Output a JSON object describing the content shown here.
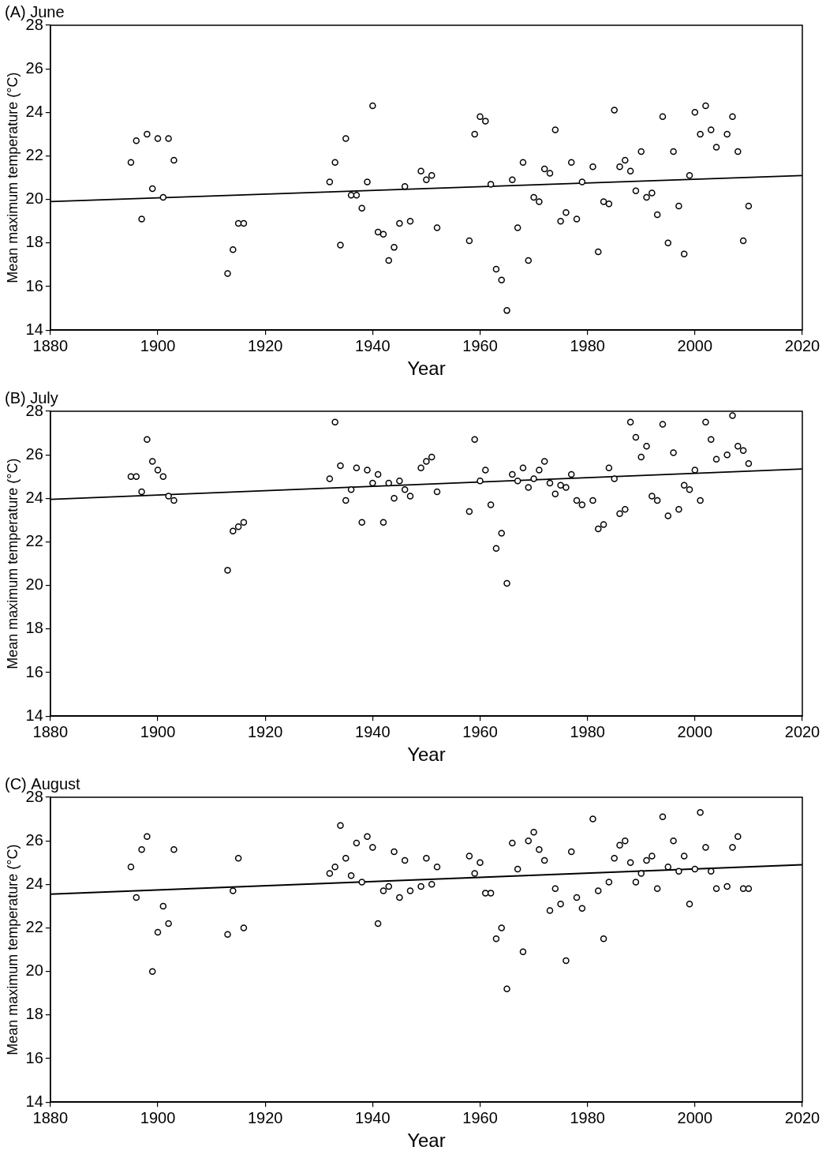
{
  "chart_data": [
    {
      "type": "scatter",
      "title": "(A) June",
      "x_label": "Year",
      "y_label": "Mean maximum temperature (°C)",
      "xlim": [
        1880,
        2020
      ],
      "xticks": [
        1880,
        1900,
        1920,
        1940,
        1960,
        1980,
        2000,
        2020
      ],
      "ylim": [
        14,
        28
      ],
      "yticks": [
        14,
        16,
        18,
        20,
        22,
        24,
        26,
        28
      ],
      "grid": false,
      "legend": "none",
      "series": [
        {
          "type": "scatter",
          "marker": "open_circle",
          "color": "#000000",
          "x": [
            1895,
            1896,
            1897,
            1898,
            1899,
            1900,
            1901,
            1902,
            1903,
            1913,
            1914,
            1915,
            1916,
            1932,
            1933,
            1934,
            1935,
            1936,
            1937,
            1938,
            1939,
            1940,
            1941,
            1942,
            1943,
            1944,
            1945,
            1946,
            1947,
            1949,
            1950,
            1951,
            1952,
            1958,
            1959,
            1960,
            1961,
            1962,
            1963,
            1964,
            1965,
            1966,
            1967,
            1968,
            1969,
            1970,
            1971,
            1972,
            1973,
            1974,
            1975,
            1976,
            1977,
            1978,
            1979,
            1981,
            1982,
            1983,
            1984,
            1985,
            1986,
            1987,
            1988,
            1989,
            1990,
            1991,
            1992,
            1993,
            1994,
            1995,
            1996,
            1997,
            1998,
            1999,
            2000,
            2001,
            2002,
            2003,
            2004,
            2006,
            2007,
            2008,
            2009,
            2010
          ],
          "values": [
            21.7,
            22.7,
            19.1,
            23.0,
            20.5,
            22.8,
            20.1,
            22.8,
            21.8,
            16.6,
            17.7,
            18.9,
            18.9,
            20.8,
            21.7,
            17.9,
            22.8,
            20.2,
            20.2,
            19.6,
            20.8,
            24.3,
            18.5,
            18.4,
            17.2,
            17.8,
            18.9,
            20.6,
            19.0,
            21.3,
            20.9,
            21.1,
            18.7,
            18.1,
            23.0,
            23.8,
            23.6,
            20.7,
            16.8,
            16.3,
            14.9,
            20.9,
            18.7,
            21.7,
            17.2,
            20.1,
            19.9,
            21.4,
            21.2,
            23.2,
            19.0,
            19.4,
            21.7,
            19.1,
            20.8,
            21.5,
            17.6,
            19.9,
            19.8,
            24.1,
            21.5,
            21.8,
            21.3,
            20.4,
            22.2,
            20.1,
            20.3,
            19.3,
            23.8,
            18.0,
            22.2,
            19.7,
            17.5,
            21.1,
            24.0,
            23.0,
            24.3,
            23.2,
            22.4,
            23.0,
            23.8,
            22.2,
            18.1,
            19.7
          ]
        },
        {
          "type": "line",
          "line_style": "solid",
          "color": "#000000",
          "x": [
            1880,
            2020
          ],
          "values": [
            19.9,
            21.1
          ]
        }
      ]
    },
    {
      "type": "scatter",
      "title": "(B) July",
      "x_label": "Year",
      "y_label": "Mean maximum temperature (°C)",
      "xlim": [
        1880,
        2020
      ],
      "xticks": [
        1880,
        1900,
        1920,
        1940,
        1960,
        1980,
        2000,
        2020
      ],
      "ylim": [
        14,
        28
      ],
      "yticks": [
        14,
        16,
        18,
        20,
        22,
        24,
        26,
        28
      ],
      "grid": false,
      "legend": "none",
      "series": [
        {
          "type": "scatter",
          "marker": "open_circle",
          "color": "#000000",
          "x": [
            1895,
            1896,
            1897,
            1898,
            1899,
            1900,
            1901,
            1902,
            1903,
            1913,
            1914,
            1915,
            1916,
            1932,
            1933,
            1934,
            1935,
            1936,
            1937,
            1938,
            1939,
            1940,
            1941,
            1942,
            1943,
            1944,
            1945,
            1946,
            1947,
            1949,
            1950,
            1951,
            1952,
            1958,
            1959,
            1960,
            1961,
            1962,
            1963,
            1964,
            1965,
            1966,
            1967,
            1968,
            1969,
            1970,
            1971,
            1972,
            1973,
            1974,
            1975,
            1976,
            1977,
            1978,
            1979,
            1981,
            1982,
            1983,
            1984,
            1985,
            1986,
            1987,
            1988,
            1989,
            1990,
            1991,
            1992,
            1993,
            1994,
            1995,
            1996,
            1997,
            1998,
            1999,
            2000,
            2001,
            2002,
            2003,
            2004,
            2006,
            2007,
            2008,
            2009,
            2010
          ],
          "values": [
            25.0,
            25.0,
            24.3,
            26.7,
            25.7,
            25.3,
            25.0,
            24.1,
            23.9,
            20.7,
            22.5,
            22.7,
            22.9,
            24.9,
            27.5,
            25.5,
            23.9,
            24.4,
            25.4,
            22.9,
            25.3,
            24.7,
            25.1,
            22.9,
            24.7,
            24.0,
            24.8,
            24.4,
            24.1,
            25.4,
            25.7,
            25.9,
            24.3,
            23.4,
            26.7,
            24.8,
            25.3,
            23.7,
            21.7,
            22.4,
            20.1,
            25.1,
            24.8,
            25.4,
            24.5,
            24.9,
            25.3,
            25.7,
            24.7,
            24.2,
            24.6,
            24.5,
            25.1,
            23.9,
            23.7,
            23.9,
            22.6,
            22.8,
            25.4,
            24.9,
            23.3,
            23.5,
            27.5,
            26.8,
            25.9,
            26.4,
            24.1,
            23.9,
            27.4,
            23.2,
            26.1,
            23.5,
            24.6,
            24.4,
            25.3,
            23.9,
            27.5,
            26.7,
            25.8,
            26.0,
            27.8,
            26.4,
            26.2,
            25.6
          ]
        },
        {
          "type": "line",
          "line_style": "solid",
          "color": "#000000",
          "x": [
            1880,
            2020
          ],
          "values": [
            23.95,
            25.35
          ]
        }
      ]
    },
    {
      "type": "scatter",
      "title": "(C) August",
      "x_label": "Year",
      "y_label": "Mean maximum temperature (°C)",
      "xlim": [
        1880,
        2020
      ],
      "xticks": [
        1880,
        1900,
        1920,
        1940,
        1960,
        1980,
        2000,
        2020
      ],
      "ylim": [
        14,
        28
      ],
      "yticks": [
        14,
        16,
        18,
        20,
        22,
        24,
        26,
        28
      ],
      "grid": false,
      "legend": "none",
      "series": [
        {
          "type": "scatter",
          "marker": "open_circle",
          "color": "#000000",
          "x": [
            1895,
            1896,
            1897,
            1898,
            1899,
            1900,
            1901,
            1902,
            1903,
            1913,
            1914,
            1915,
            1916,
            1932,
            1933,
            1934,
            1935,
            1936,
            1937,
            1938,
            1939,
            1940,
            1941,
            1942,
            1943,
            1944,
            1945,
            1946,
            1947,
            1949,
            1950,
            1951,
            1952,
            1958,
            1959,
            1960,
            1961,
            1962,
            1963,
            1964,
            1965,
            1966,
            1967,
            1968,
            1969,
            1970,
            1971,
            1972,
            1973,
            1974,
            1975,
            1976,
            1977,
            1978,
            1979,
            1981,
            1982,
            1983,
            1984,
            1985,
            1986,
            1987,
            1988,
            1989,
            1990,
            1991,
            1992,
            1993,
            1994,
            1995,
            1996,
            1997,
            1998,
            1999,
            2000,
            2001,
            2002,
            2003,
            2004,
            2006,
            2007,
            2008,
            2009,
            2010
          ],
          "values": [
            24.8,
            23.4,
            25.6,
            26.2,
            20.0,
            21.8,
            23.0,
            22.2,
            25.6,
            21.7,
            23.7,
            25.2,
            22.0,
            24.5,
            24.8,
            26.7,
            25.2,
            24.4,
            25.9,
            24.1,
            26.2,
            25.7,
            22.2,
            23.7,
            23.9,
            25.5,
            23.4,
            25.1,
            23.7,
            23.9,
            25.2,
            24.0,
            24.8,
            25.3,
            24.5,
            25.0,
            23.6,
            23.6,
            21.5,
            22.0,
            19.2,
            25.9,
            24.7,
            20.9,
            26.0,
            26.4,
            25.6,
            25.1,
            22.8,
            23.8,
            23.1,
            20.5,
            25.5,
            23.4,
            22.9,
            27.0,
            23.7,
            21.5,
            24.1,
            25.2,
            25.8,
            26.0,
            25.0,
            24.1,
            24.5,
            25.1,
            25.3,
            23.8,
            27.1,
            24.8,
            26.0,
            24.6,
            25.3,
            23.1,
            24.7,
            27.3,
            25.7,
            24.6,
            23.8,
            23.9,
            25.7,
            26.2,
            23.8,
            23.8
          ]
        },
        {
          "type": "line",
          "line_style": "solid",
          "color": "#000000",
          "x": [
            1880,
            2020
          ],
          "values": [
            23.55,
            24.9
          ]
        }
      ]
    }
  ]
}
